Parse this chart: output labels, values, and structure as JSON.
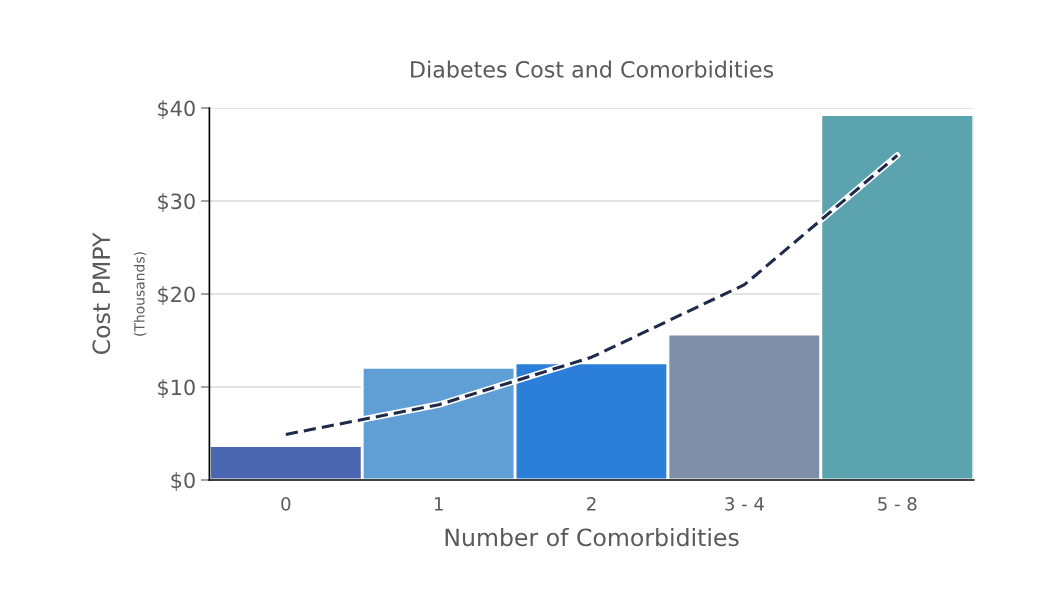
{
  "chart_data": {
    "type": "bar",
    "title": "Diabetes Cost and Comorbidities",
    "xlabel": "Number of Comorbidities",
    "ylabel": "Cost PMPY",
    "annotations": [
      "(Thousands)"
    ],
    "categories": [
      "0",
      "1",
      "2",
      "3 - 4",
      "5 - 8"
    ],
    "series": [
      {
        "colors": [
          "#4a66b0",
          "#5f9fd5",
          "#2b7fd8",
          "#7f8faa",
          "#5ba3ae"
        ],
        "values": [
          3.7,
          12.1,
          12.6,
          15.7,
          39.3
        ]
      },
      {
        "type": "line",
        "color": "#1f2a4a",
        "line_style": "dashed",
        "values": [
          4.9,
          8.1,
          13.2,
          21.0,
          34.9
        ]
      }
    ],
    "ylim": [
      0,
      40
    ],
    "yticks": [
      {
        "value": 0,
        "label": "$0"
      },
      {
        "value": 10,
        "label": "$10"
      },
      {
        "value": 20,
        "label": "$20"
      },
      {
        "value": 30,
        "label": "$30"
      },
      {
        "value": 40,
        "label": "$40"
      }
    ],
    "grid": "y",
    "legend": false
  }
}
